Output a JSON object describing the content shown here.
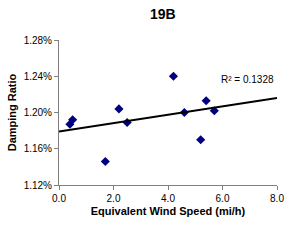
{
  "chart_data": {
    "type": "scatter",
    "title": "19B",
    "x_label": "Equivalent Wind Speed (mi/h)",
    "y_label": "Damping Ratio",
    "series": [
      {
        "type": "scatter",
        "color": "#000080",
        "marker": "diamond",
        "x": [
          0.4,
          0.5,
          1.7,
          2.2,
          2.5,
          4.2,
          4.6,
          5.2,
          5.4,
          5.7
        ],
        "values": [
          1.187,
          1.192,
          1.146,
          1.204,
          1.189,
          1.24,
          1.2,
          1.17,
          1.213,
          1.202
        ]
      },
      {
        "type": "line",
        "color": "#000000",
        "line_style": "solid",
        "x": [
          0,
          8
        ],
        "values": [
          1.179,
          1.216
        ]
      }
    ],
    "annotations": [
      {
        "text": "R² = 0.1328",
        "x": 6.9,
        "y": 1.236
      }
    ],
    "xlim": [
      0,
      8
    ],
    "xticks": [
      {
        "value": 0,
        "label": "0.0"
      },
      {
        "value": 2,
        "label": "2.0"
      },
      {
        "value": 4,
        "label": "4.0"
      },
      {
        "value": 6,
        "label": "6.0"
      },
      {
        "value": 8,
        "label": "8.0"
      }
    ],
    "ylim": [
      1.12,
      1.28
    ],
    "yticks": [
      {
        "value": 1.12,
        "label": "1.12%"
      },
      {
        "value": 1.16,
        "label": "1.16%"
      },
      {
        "value": 1.2,
        "label": "1.20%"
      },
      {
        "value": 1.24,
        "label": "1.24%"
      },
      {
        "value": 1.28,
        "label": "1.28%"
      }
    ],
    "grid": false
  }
}
